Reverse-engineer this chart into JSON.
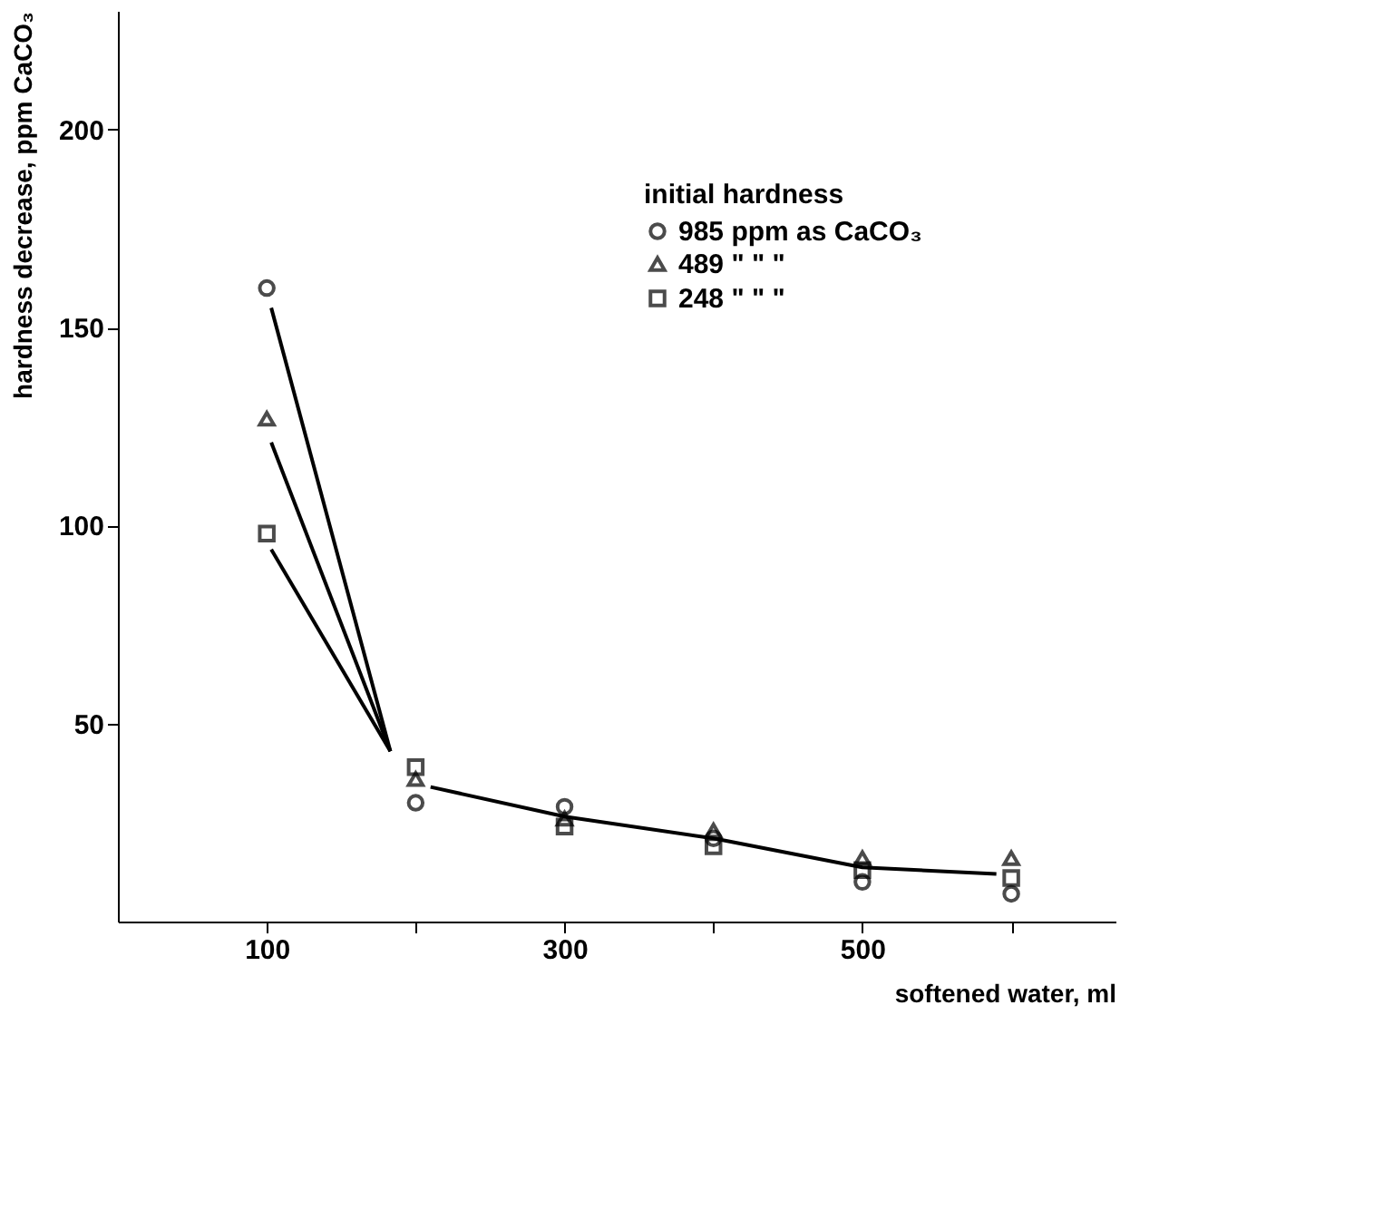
{
  "chart_data": {
    "type": "scatter",
    "xlabel": "softened water, ml",
    "ylabel": "hardness decrease, ppm CaCO₃",
    "legend_title": "initial hardness",
    "legend": "top right",
    "xlim": [
      0,
      670
    ],
    "ylim": [
      0,
      230
    ],
    "xticks": [
      100,
      {
        "value": 200,
        "label": null
      },
      300,
      {
        "value": 400,
        "label": null
      },
      500,
      {
        "value": 600,
        "label": null
      }
    ],
    "yticks": [
      50,
      100,
      150,
      200
    ],
    "grid": false,
    "series": [
      {
        "name": "985  ppm  as  CaCO₃",
        "color": "#000000",
        "marker": "circle",
        "x": [
          100,
          200,
          300,
          400,
          500,
          600
        ],
        "values": [
          160,
          30,
          29,
          21,
          10,
          7
        ]
      },
      {
        "name": "489    \"     \"     \"",
        "color": "#000000",
        "marker": "triangle",
        "x": [
          100,
          200,
          300,
          400,
          500,
          600
        ],
        "values": [
          127,
          36,
          26,
          23,
          16,
          16
        ]
      },
      {
        "name": "248    \"     \"     \"",
        "color": "#000000",
        "marker": "square",
        "x": [
          100,
          200,
          300,
          400,
          500,
          600
        ],
        "values": [
          98,
          39,
          24,
          19,
          13,
          11
        ]
      },
      {
        "type": "line",
        "color": "#000000",
        "x": [
          103,
          183
        ],
        "values": [
          155,
          43
        ]
      },
      {
        "type": "line",
        "color": "#000000",
        "x": [
          103,
          183
        ],
        "values": [
          121,
          43
        ]
      },
      {
        "type": "line",
        "color": "#000000",
        "x": [
          103,
          183
        ],
        "values": [
          94,
          43
        ]
      },
      {
        "type": "line",
        "color": "#000000",
        "x": [
          210,
          300,
          400,
          500,
          590
        ],
        "values": [
          34,
          26.5,
          21,
          13.7,
          12
        ]
      }
    ]
  }
}
